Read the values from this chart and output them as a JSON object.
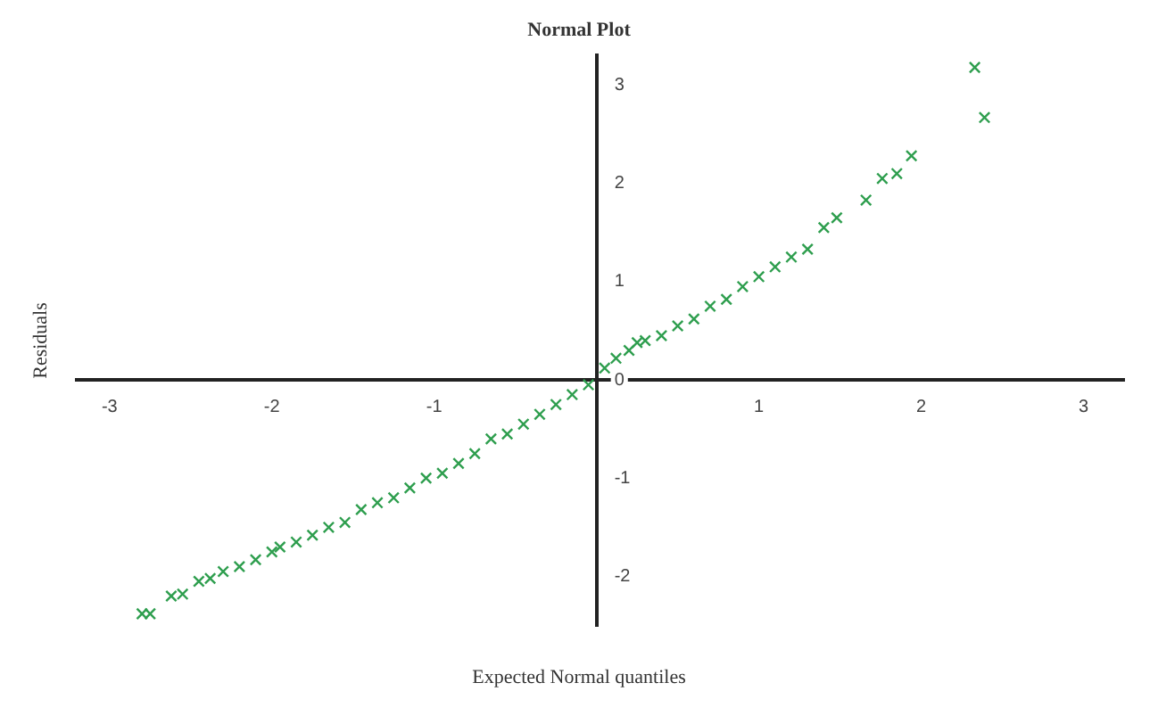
{
  "chart_data": {
    "type": "scatter",
    "title": "Normal Plot",
    "xlabel": "Expected Normal quantiles",
    "ylabel": "Residuals",
    "x": [
      -2.8,
      -2.75,
      -2.62,
      -2.55,
      -2.45,
      -2.38,
      -2.3,
      -2.2,
      -2.1,
      -2.0,
      -1.95,
      -1.85,
      -1.75,
      -1.65,
      -1.55,
      -1.45,
      -1.35,
      -1.25,
      -1.15,
      -1.05,
      -0.95,
      -0.85,
      -0.75,
      -0.65,
      -0.55,
      -0.45,
      -0.35,
      -0.25,
      -0.15,
      -0.05,
      0.05,
      0.12,
      0.2,
      0.25,
      0.3,
      0.4,
      0.5,
      0.6,
      0.7,
      0.8,
      0.9,
      1.0,
      1.1,
      1.2,
      1.3,
      1.4,
      1.48,
      1.66,
      1.76,
      1.85,
      1.94,
      2.33,
      2.39
    ],
    "series": [
      {
        "color": "#2e9e4e",
        "values": [
          -2.38,
          -2.38,
          -2.2,
          -2.18,
          -2.05,
          -2.02,
          -1.95,
          -1.9,
          -1.83,
          -1.75,
          -1.7,
          -1.65,
          -1.58,
          -1.5,
          -1.45,
          -1.32,
          -1.25,
          -1.2,
          -1.1,
          -1.0,
          -0.95,
          -0.85,
          -0.75,
          -0.6,
          -0.55,
          -0.45,
          -0.35,
          -0.25,
          -0.15,
          -0.05,
          0.12,
          0.22,
          0.3,
          0.38,
          0.4,
          0.45,
          0.55,
          0.62,
          0.75,
          0.82,
          0.95,
          1.05,
          1.15,
          1.25,
          1.33,
          1.55,
          1.65,
          1.83,
          2.05,
          2.1,
          2.28,
          3.18,
          2.67
        ]
      }
    ],
    "xlim": [
      -3.2,
      3.25
    ],
    "ylim": [
      -2.5,
      3.3
    ],
    "xticks": [
      -3,
      -2,
      -1,
      1,
      2,
      3
    ],
    "yticks": [
      -2,
      -1,
      0,
      1,
      2,
      3
    ],
    "grid": false,
    "legend": false,
    "marker": "cross"
  }
}
